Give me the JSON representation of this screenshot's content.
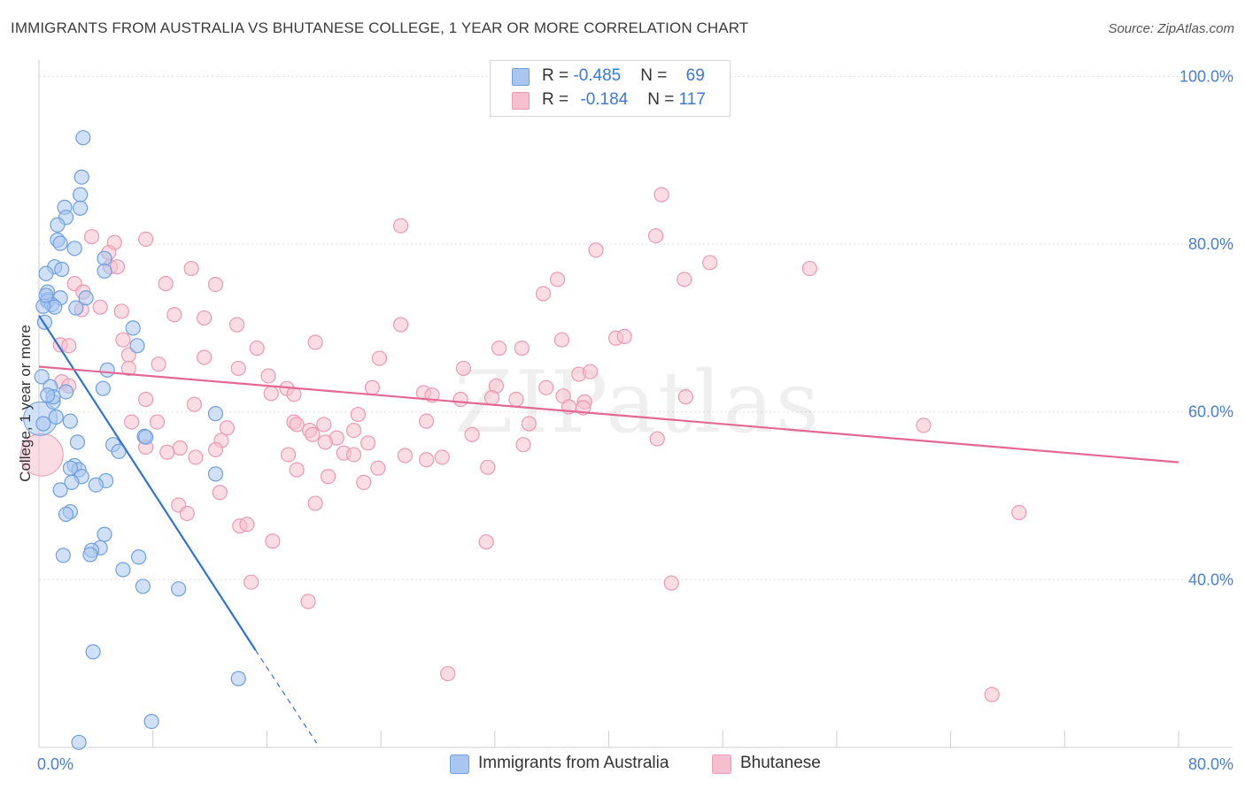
{
  "title": "IMMIGRANTS FROM AUSTRALIA VS BHUTANESE COLLEGE, 1 YEAR OR MORE CORRELATION CHART",
  "source": "Source: ZipAtlas.com",
  "watermark": "ZIPatlas",
  "colors": {
    "blue_fill": "#a9c7ee",
    "blue_stroke": "#6f9fde",
    "blue_line": "#2f73d6",
    "pink_fill": "#f6bfd0",
    "pink_stroke": "#ea9ab3",
    "pink_line": "#e46893",
    "axis_text": "#4a7fd1",
    "grid": "#e3e3e3"
  },
  "legend": {
    "rows": [
      {
        "r_label": "R = ",
        "r_value": "-0.485",
        "n_label": "N = ",
        "n_value": "69"
      },
      {
        "r_label": "R = ",
        "r_value": "-0.184",
        "n_label": "N = ",
        "n_value": "117"
      }
    ]
  },
  "bottom_legend": {
    "series_a": "Immigrants from Australia",
    "series_b": "Bhutanese"
  },
  "chart_data": {
    "type": "scatter",
    "title": "IMMIGRANTS FROM AUSTRALIA VS BHUTANESE COLLEGE, 1 YEAR OR MORE CORRELATION CHART",
    "xlabel": "",
    "ylabel": "College, 1 year or more",
    "xlim": [
      0,
      80
    ],
    "ylim": [
      20,
      103
    ],
    "x_tick_labels": [
      {
        "value": 0,
        "label": "0.0%"
      },
      {
        "value": 80,
        "label": "80.0%"
      }
    ],
    "x_minor_ticks": [
      0,
      8,
      16,
      24,
      32,
      40,
      48,
      56,
      64,
      72,
      80
    ],
    "y_ticks": [
      {
        "value": 40,
        "label": "40.0%"
      },
      {
        "value": 60,
        "label": "60.0%"
      },
      {
        "value": 80,
        "label": "80.0%"
      },
      {
        "value": 100,
        "label": "100.0%"
      }
    ],
    "grid": true,
    "series": [
      {
        "name": "Immigrants from Australia",
        "R": -0.485,
        "N": 69,
        "trend": {
          "x0": 0,
          "y0": 71.5,
          "x1": 15.2,
          "y1": 31.6,
          "dash_to_x": 19.5,
          "dash_to_y": 20.5
        },
        "points": [
          [
            3.1,
            92.7
          ],
          [
            3.0,
            88.0
          ],
          [
            2.9,
            85.9
          ],
          [
            1.8,
            84.4
          ],
          [
            2.9,
            84.3
          ],
          [
            1.9,
            83.2
          ],
          [
            1.3,
            82.3
          ],
          [
            1.3,
            80.5
          ],
          [
            1.5,
            80.1
          ],
          [
            2.5,
            79.5
          ],
          [
            4.6,
            78.3
          ],
          [
            1.1,
            77.3
          ],
          [
            1.6,
            77.0
          ],
          [
            4.6,
            76.8
          ],
          [
            0.5,
            76.5
          ],
          [
            0.6,
            74.3
          ],
          [
            0.6,
            73.4
          ],
          [
            1.5,
            73.6
          ],
          [
            0.6,
            73.2
          ],
          [
            3.3,
            73.6
          ],
          [
            0.9,
            72.8
          ],
          [
            1.1,
            72.5
          ],
          [
            2.6,
            72.4
          ],
          [
            0.3,
            72.6
          ],
          [
            0.4,
            70.7
          ],
          [
            6.6,
            70.0
          ],
          [
            6.9,
            67.9
          ],
          [
            4.8,
            65.0
          ],
          [
            0.2,
            64.2
          ],
          [
            4.5,
            62.8
          ],
          [
            1.9,
            62.4
          ],
          [
            12.4,
            59.8
          ],
          [
            1.2,
            59.4
          ],
          [
            2.2,
            58.9
          ],
          [
            0.3,
            58.6
          ],
          [
            7.4,
            57.1
          ],
          [
            7.5,
            57.0
          ],
          [
            2.7,
            56.4
          ],
          [
            5.2,
            56.1
          ],
          [
            5.6,
            55.3
          ],
          [
            2.5,
            53.6
          ],
          [
            2.8,
            53.1
          ],
          [
            2.2,
            53.3
          ],
          [
            12.4,
            52.6
          ],
          [
            3.0,
            52.3
          ],
          [
            4.7,
            51.8
          ],
          [
            2.3,
            51.6
          ],
          [
            4.0,
            51.3
          ],
          [
            1.5,
            50.7
          ],
          [
            2.2,
            48.1
          ],
          [
            1.9,
            47.8
          ],
          [
            4.6,
            45.4
          ],
          [
            4.3,
            43.8
          ],
          [
            3.7,
            43.5
          ],
          [
            3.6,
            43.0
          ],
          [
            7.0,
            42.7
          ],
          [
            1.7,
            42.9
          ],
          [
            5.9,
            41.2
          ],
          [
            7.3,
            39.2
          ],
          [
            9.8,
            38.9
          ],
          [
            3.8,
            31.4
          ],
          [
            14.0,
            28.2
          ],
          [
            7.9,
            23.1
          ],
          [
            2.8,
            20.6
          ],
          [
            1.0,
            61.2
          ],
          [
            0.8,
            63.0
          ],
          [
            1.0,
            61.8
          ],
          [
            0.6,
            62.0
          ],
          [
            0.5,
            73.9
          ]
        ],
        "large_points": [
          [
            0.1,
            59.2,
            19
          ]
        ]
      },
      {
        "name": "Bhutanese",
        "R": -0.184,
        "N": 117,
        "trend": {
          "x0": 0,
          "y0": 65.4,
          "x1": 80,
          "y1": 54.0
        },
        "points": [
          [
            43.7,
            85.9
          ],
          [
            25.4,
            82.2
          ],
          [
            43.3,
            81.0
          ],
          [
            7.5,
            80.6
          ],
          [
            5.3,
            80.2
          ],
          [
            3.7,
            80.9
          ],
          [
            39.1,
            79.3
          ],
          [
            4.9,
            79.0
          ],
          [
            5.0,
            77.3
          ],
          [
            5.5,
            77.3
          ],
          [
            10.7,
            77.1
          ],
          [
            54.1,
            77.1
          ],
          [
            45.3,
            75.8
          ],
          [
            36.4,
            75.8
          ],
          [
            8.9,
            75.3
          ],
          [
            12.4,
            75.2
          ],
          [
            2.5,
            75.3
          ],
          [
            3.1,
            74.3
          ],
          [
            35.4,
            74.1
          ],
          [
            4.3,
            72.5
          ],
          [
            5.8,
            72.0
          ],
          [
            3.0,
            72.2
          ],
          [
            9.5,
            71.6
          ],
          [
            11.6,
            71.2
          ],
          [
            13.9,
            70.4
          ],
          [
            25.4,
            70.4
          ],
          [
            5.9,
            68.6
          ],
          [
            19.4,
            68.3
          ],
          [
            36.7,
            68.6
          ],
          [
            40.5,
            68.8
          ],
          [
            41.1,
            69.0
          ],
          [
            1.5,
            68.0
          ],
          [
            2.1,
            67.9
          ],
          [
            15.3,
            67.6
          ],
          [
            32.3,
            67.6
          ],
          [
            33.9,
            67.6
          ],
          [
            6.3,
            66.8
          ],
          [
            11.6,
            66.5
          ],
          [
            23.9,
            66.4
          ],
          [
            8.4,
            65.7
          ],
          [
            6.3,
            65.2
          ],
          [
            14.0,
            65.2
          ],
          [
            29.8,
            65.2
          ],
          [
            37.9,
            64.5
          ],
          [
            38.7,
            64.8
          ],
          [
            16.1,
            64.3
          ],
          [
            1.6,
            63.6
          ],
          [
            2.1,
            63.1
          ],
          [
            32.1,
            63.1
          ],
          [
            23.4,
            62.9
          ],
          [
            35.6,
            62.9
          ],
          [
            16.3,
            62.2
          ],
          [
            17.4,
            62.8
          ],
          [
            17.9,
            62.1
          ],
          [
            27.0,
            62.3
          ],
          [
            29.6,
            61.5
          ],
          [
            31.8,
            61.7
          ],
          [
            36.8,
            61.9
          ],
          [
            33.5,
            61.5
          ],
          [
            7.5,
            61.5
          ],
          [
            45.4,
            61.8
          ],
          [
            38.3,
            61.2
          ],
          [
            37.2,
            60.6
          ],
          [
            10.9,
            60.9
          ],
          [
            38.2,
            60.5
          ],
          [
            22.4,
            59.7
          ],
          [
            17.9,
            58.8
          ],
          [
            22.1,
            57.8
          ],
          [
            23.1,
            56.3
          ],
          [
            27.2,
            58.9
          ],
          [
            6.5,
            58.8
          ],
          [
            8.3,
            58.8
          ],
          [
            20.0,
            58.5
          ],
          [
            13.2,
            58.1
          ],
          [
            18.1,
            58.5
          ],
          [
            19.0,
            57.8
          ],
          [
            30.4,
            57.3
          ],
          [
            34.4,
            58.6
          ],
          [
            20.9,
            56.9
          ],
          [
            20.1,
            56.4
          ],
          [
            19.2,
            57.3
          ],
          [
            12.8,
            56.6
          ],
          [
            43.4,
            56.8
          ],
          [
            9.9,
            55.7
          ],
          [
            7.5,
            55.8
          ],
          [
            12.4,
            55.5
          ],
          [
            17.5,
            54.9
          ],
          [
            21.4,
            55.1
          ],
          [
            22.1,
            54.9
          ],
          [
            9.0,
            55.2
          ],
          [
            34.0,
            56.1
          ],
          [
            11.0,
            54.6
          ],
          [
            25.7,
            54.8
          ],
          [
            27.2,
            54.3
          ],
          [
            28.3,
            54.6
          ],
          [
            23.8,
            53.3
          ],
          [
            18.1,
            53.1
          ],
          [
            31.5,
            53.4
          ],
          [
            20.3,
            52.3
          ],
          [
            22.8,
            51.6
          ],
          [
            12.7,
            50.4
          ],
          [
            9.8,
            48.9
          ],
          [
            10.4,
            47.9
          ],
          [
            19.4,
            49.1
          ],
          [
            14.1,
            46.4
          ],
          [
            14.6,
            46.6
          ],
          [
            16.4,
            44.6
          ],
          [
            31.4,
            44.5
          ],
          [
            14.9,
            39.7
          ],
          [
            44.4,
            39.6
          ],
          [
            18.9,
            37.4
          ],
          [
            28.7,
            28.8
          ],
          [
            68.8,
            48.0
          ],
          [
            62.1,
            58.4
          ],
          [
            66.9,
            26.3
          ],
          [
            47.1,
            77.8
          ],
          [
            27.6,
            62.0
          ]
        ],
        "large_points": [
          [
            0.2,
            54.9,
            24
          ]
        ]
      }
    ]
  }
}
